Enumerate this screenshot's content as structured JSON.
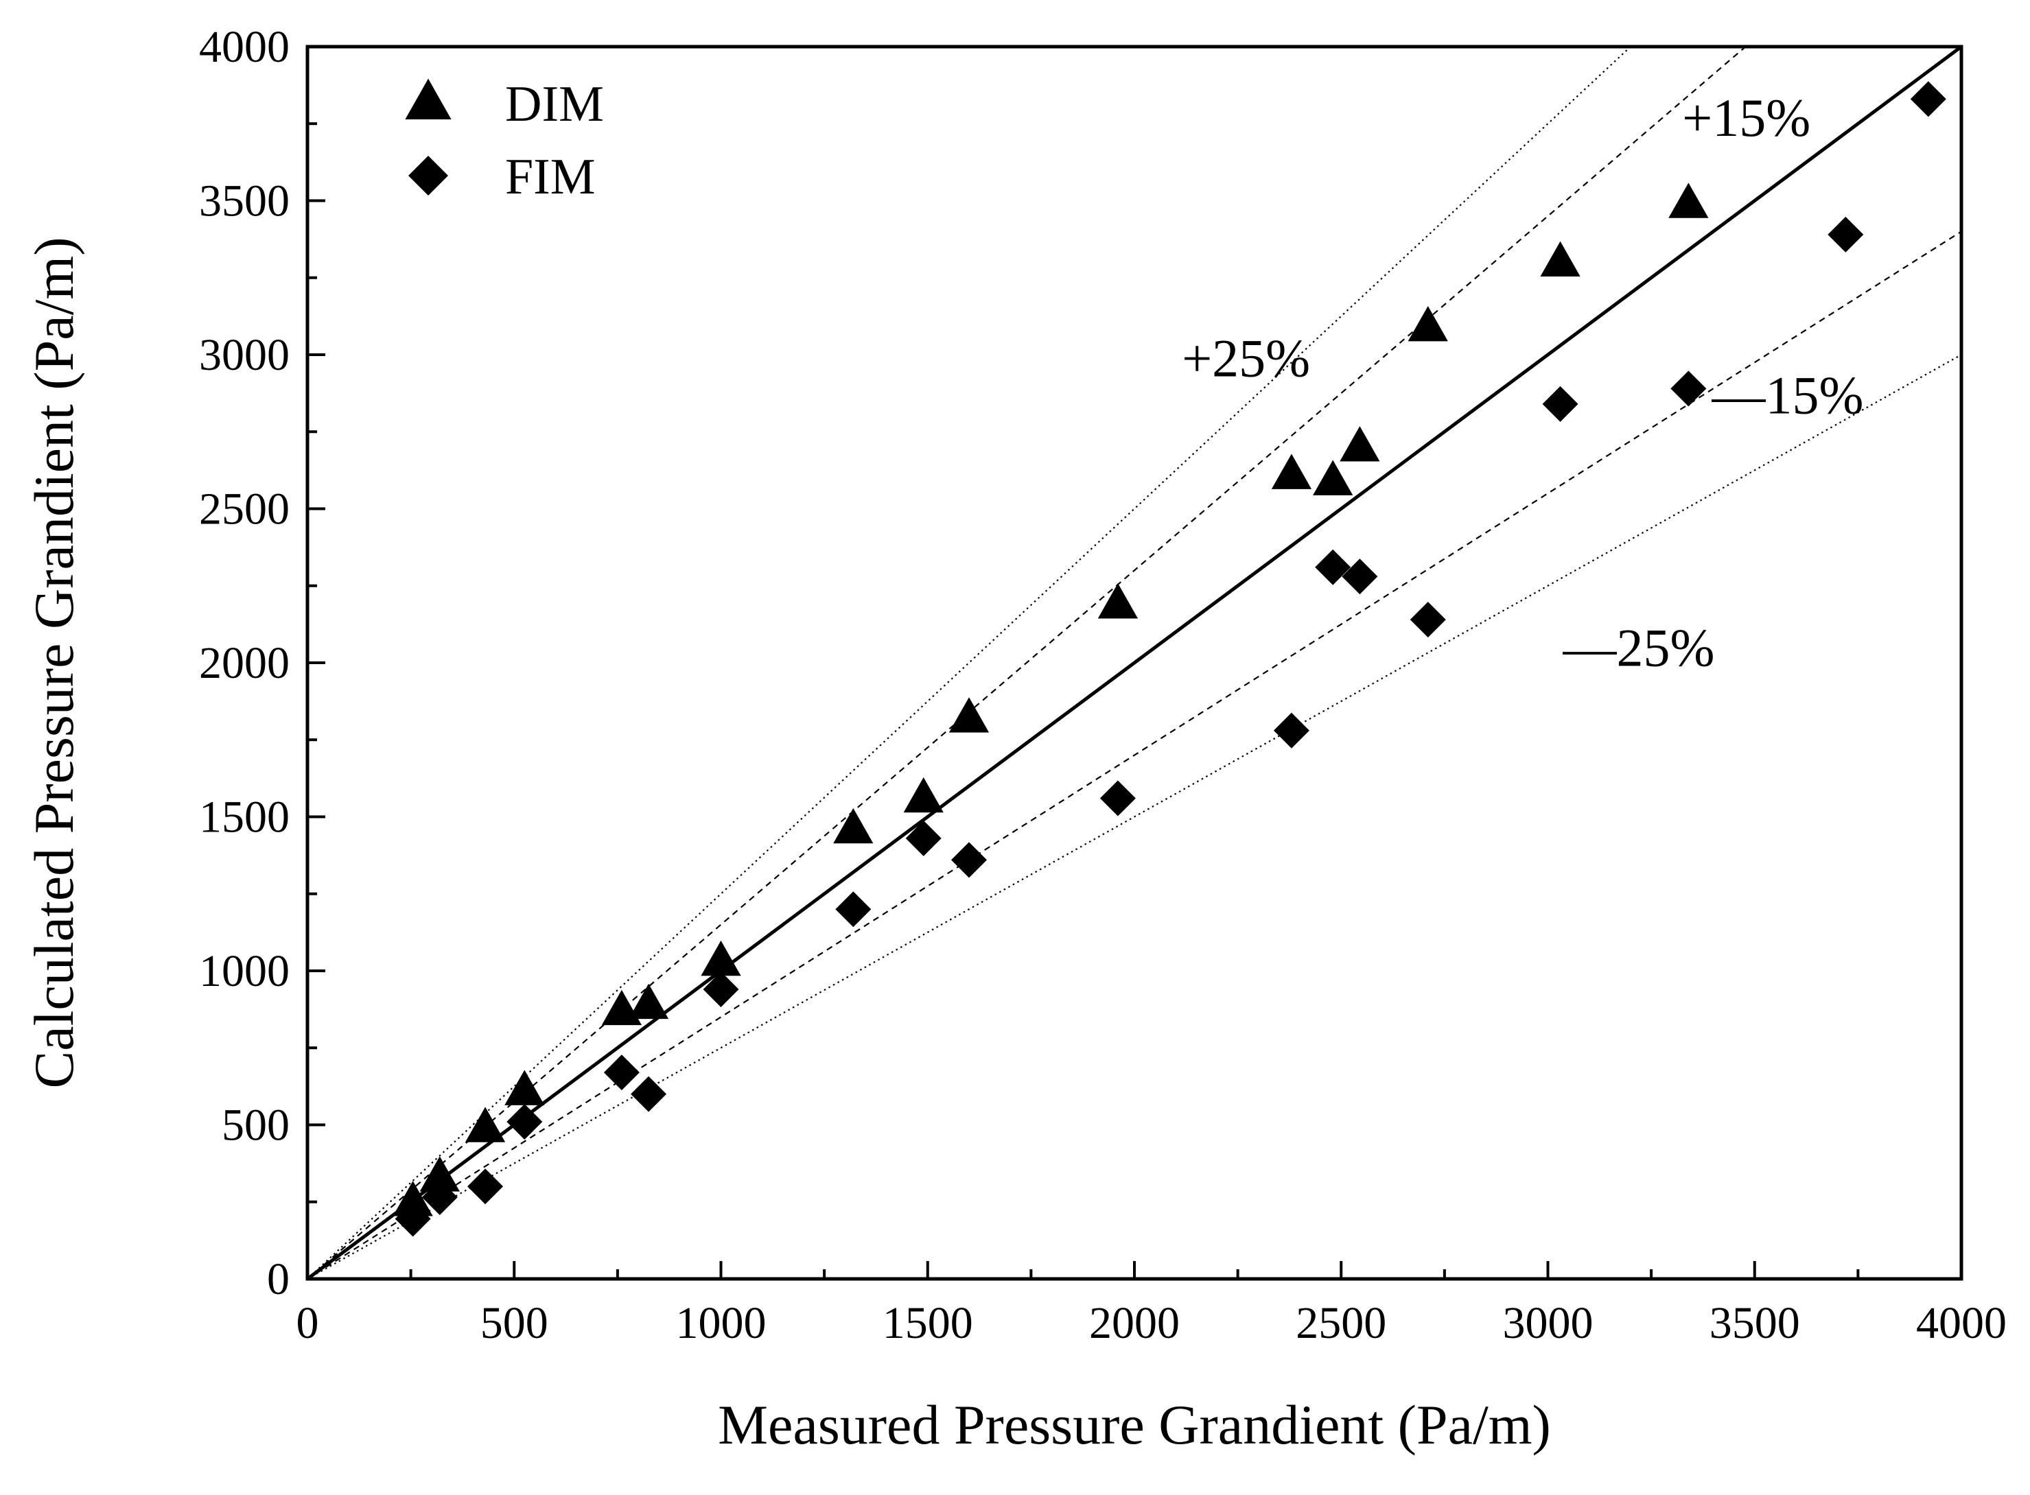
{
  "chart_data": {
    "type": "scatter",
    "title": "",
    "xlabel": "Measured Pressure Grandient (Pa/m)",
    "ylabel": "Calculated Pressure Grandient (Pa/m)",
    "xlim": [
      0,
      4000
    ],
    "ylim": [
      0,
      4000
    ],
    "xticks": [
      0,
      500,
      1000,
      1500,
      2000,
      2500,
      3000,
      3500,
      4000
    ],
    "yticks": [
      0,
      500,
      1000,
      1500,
      2000,
      2500,
      3000,
      3500,
      4000
    ],
    "x_tick_labels": [
      "0",
      "500",
      "1000",
      "1500",
      "2000",
      "2500",
      "3000",
      "3500",
      "4000"
    ],
    "y_tick_labels": [
      "0",
      "500",
      "1000",
      "1500",
      "2000",
      "2500",
      "3000",
      "3500",
      "4000"
    ],
    "grid": false,
    "legend_position": "top-left",
    "series": [
      {
        "name": "DIM",
        "marker": "triangle",
        "color": "#000000",
        "points": [
          [
            255,
            250
          ],
          [
            320,
            330
          ],
          [
            430,
            490
          ],
          [
            525,
            610
          ],
          [
            760,
            870
          ],
          [
            825,
            890
          ],
          [
            1000,
            1030
          ],
          [
            1320,
            1460
          ],
          [
            1490,
            1560
          ],
          [
            1600,
            1820
          ],
          [
            1960,
            2190
          ],
          [
            2380,
            2610
          ],
          [
            2480,
            2590
          ],
          [
            2545,
            2700
          ],
          [
            2710,
            3090
          ],
          [
            3030,
            3300
          ],
          [
            3340,
            3490
          ]
        ]
      },
      {
        "name": "FIM",
        "marker": "diamond",
        "color": "#000000",
        "points": [
          [
            255,
            195
          ],
          [
            320,
            265
          ],
          [
            430,
            300
          ],
          [
            525,
            510
          ],
          [
            760,
            670
          ],
          [
            825,
            600
          ],
          [
            1000,
            940
          ],
          [
            1320,
            1200
          ],
          [
            1490,
            1430
          ],
          [
            1600,
            1360
          ],
          [
            1960,
            1560
          ],
          [
            2380,
            1780
          ],
          [
            2480,
            2310
          ],
          [
            2545,
            2280
          ],
          [
            2710,
            2140
          ],
          [
            3030,
            2840
          ],
          [
            3340,
            2890
          ],
          [
            3720,
            3390
          ],
          [
            3920,
            3830
          ]
        ]
      }
    ],
    "reference_lines": [
      {
        "label": "y = x",
        "slope": 1.0,
        "style": "solid"
      },
      {
        "label": "+15%",
        "slope": 1.15,
        "style": "dashed"
      },
      {
        "label": "—15%",
        "slope": 0.85,
        "style": "dashed"
      },
      {
        "label": "+25%",
        "slope": 1.25,
        "style": "dotted"
      },
      {
        "label": "—25%",
        "slope": 0.75,
        "style": "dotted"
      }
    ],
    "annotations": [
      {
        "text": "+15%",
        "x": 3480,
        "y": 3710
      },
      {
        "text": "—15%",
        "x": 3580,
        "y": 2810
      },
      {
        "text": "+25%",
        "x": 2270,
        "y": 2930
      },
      {
        "text": "—25%",
        "x": 3220,
        "y": 1990
      }
    ]
  }
}
